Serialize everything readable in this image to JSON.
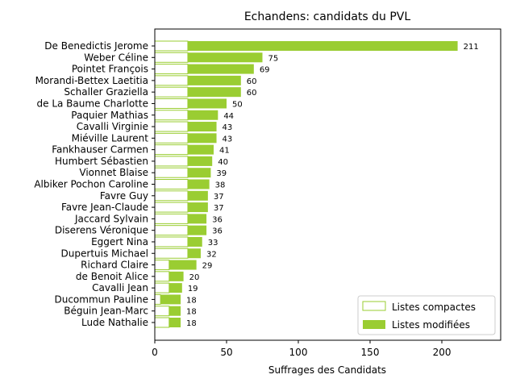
{
  "chart_data": {
    "type": "bar",
    "orientation": "horizontal",
    "stacked": true,
    "title": "Echandens: candidats du PVL",
    "xlabel": "Suffrages des Candidats",
    "ylabel": "",
    "xlim": [
      0,
      241
    ],
    "xticks": [
      0,
      50,
      100,
      150,
      200
    ],
    "grid": false,
    "legend_position": "bottom-right",
    "colors": {
      "compactes_edge": "#9acd32",
      "compactes_fill": "#ffffff",
      "modifiees": "#9acd32"
    },
    "categories": [
      "De Benedictis Jerome",
      "Weber Céline",
      "Pointet François",
      "Morandi-Bettex Laetitia",
      "Schaller Graziella",
      "de La Baume Charlotte",
      "Paquier Mathias",
      "Cavalli Virginie",
      "Miéville Laurent",
      "Fankhauser Carmen",
      "Humbert Sébastien",
      "Vionnet Blaise",
      "Albiker Pochon Caroline",
      "Favre Guy",
      "Favre Jean-Claude",
      "Jaccard Sylvain",
      "Diserens Véronique",
      "Eggert Nina",
      "Dupertuis Michael",
      "Richard Claire",
      "de Benoit Alice",
      "Cavalli Jean",
      "Ducommun Pauline",
      "Béguin Jean-Marc",
      "Lude Nathalie"
    ],
    "series": [
      {
        "name": "Listes compactes",
        "values": [
          23,
          23,
          23,
          23,
          23,
          23,
          23,
          23,
          23,
          23,
          23,
          23,
          23,
          23,
          23,
          23,
          23,
          23,
          23,
          10,
          10,
          10,
          4,
          10,
          10
        ]
      },
      {
        "name": "Listes modifiées",
        "values": [
          188,
          52,
          46,
          37,
          37,
          27,
          21,
          20,
          20,
          18,
          17,
          16,
          15,
          14,
          14,
          13,
          13,
          10,
          9,
          19,
          10,
          9,
          14,
          8,
          8
        ]
      }
    ],
    "totals": [
      211,
      75,
      69,
      60,
      60,
      50,
      44,
      43,
      43,
      41,
      40,
      39,
      38,
      37,
      37,
      36,
      36,
      33,
      32,
      29,
      20,
      19,
      18,
      18,
      18
    ]
  }
}
